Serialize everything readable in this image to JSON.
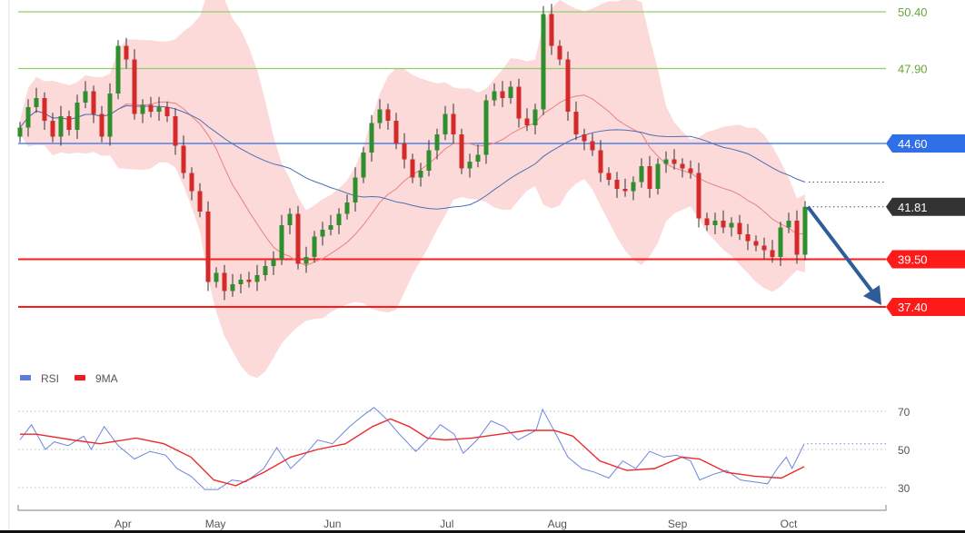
{
  "chart_data": [
    {
      "type": "candlestick",
      "ylim": [
        35.5,
        50.9
      ],
      "grid": false,
      "closes": [
        45.3,
        46.2,
        46.6,
        45.6,
        44.9,
        45.8,
        45.2,
        46.4,
        46.9,
        45.9,
        44.9,
        46.8,
        48.9,
        48.3,
        45.9,
        46.3,
        46.0,
        46.2,
        45.8,
        44.5,
        43.3,
        42.5,
        41.6,
        38.5,
        38.9,
        38.1,
        38.4,
        38.6,
        38.5,
        38.8,
        39.2,
        39.5,
        41.0,
        41.5,
        39.3,
        39.6,
        40.5,
        40.8,
        41.0,
        41.5,
        42.0,
        43.1,
        44.2,
        45.5,
        46.1,
        45.6,
        44.6,
        43.9,
        43.1,
        43.4,
        44.3,
        45.0,
        45.9,
        45.0,
        43.5,
        43.8,
        44.1,
        46.5,
        46.9,
        46.6,
        47.1,
        45.7,
        45.4,
        46.1,
        50.3,
        48.9,
        48.3,
        46.0,
        45.0,
        44.7,
        44.3,
        43.3,
        43.0,
        42.6,
        42.5,
        42.9,
        43.6,
        42.6,
        43.7,
        43.9,
        43.7,
        43.5,
        43.3,
        41.3,
        41.0,
        41.2,
        40.9,
        41.1,
        40.6,
        40.3,
        40.1,
        39.9,
        39.6,
        40.9,
        41.2,
        39.7,
        41.81
      ],
      "overlays": [
        "Bollinger bands",
        "moving average (red)",
        "moving average (blue)"
      ],
      "levels": [
        {
          "value": "50.40",
          "kind": "resistance",
          "color": "#8fcf6a"
        },
        {
          "value": "47.90",
          "kind": "resistance",
          "color": "#8fcf6a"
        },
        {
          "value": "44.60",
          "kind": "pivot",
          "color": "#2f6fe8"
        },
        {
          "value": "41.81",
          "kind": "last",
          "color": "#333333"
        },
        {
          "value": "39.50",
          "kind": "support",
          "color": "#ff1a1a"
        },
        {
          "value": "37.40",
          "kind": "support",
          "color": "#ff1a1a"
        }
      ],
      "arrow": {
        "from": 41.81,
        "to": 37.4,
        "direction": "down",
        "color": "#2e5d9a"
      },
      "x_ticks": [
        {
          "label": "Apr",
          "index": 12.6
        },
        {
          "label": "May",
          "index": 23.9
        },
        {
          "label": "Jun",
          "index": 38.2
        },
        {
          "label": "Jul",
          "index": 52.2
        },
        {
          "label": "Aug",
          "index": 65.7
        },
        {
          "label": "Sep",
          "index": 80.4
        },
        {
          "label": "Oct",
          "index": 94
        }
      ],
      "colors": {
        "up": "#2f8f2f",
        "down": "#d42a2a",
        "band": "#fbd3d3",
        "ma_short": "#e88080",
        "ma_long": "#4a6fb5"
      }
    },
    {
      "type": "line",
      "legend": [
        {
          "name": "RSI",
          "color": "#5b7fe0"
        },
        {
          "name": "9MA",
          "color": "#ee1c1c"
        }
      ],
      "legend_position": "top-left",
      "ylim": [
        20,
        80
      ],
      "y_ticks": [
        "70",
        "50",
        "30"
      ],
      "last_rsi": 53,
      "series": [
        {
          "name": "RSI",
          "points": [
            [
              0,
              55
            ],
            [
              1.4,
              63
            ],
            [
              3.1,
              50
            ],
            [
              4.2,
              54
            ],
            [
              5.9,
              52
            ],
            [
              7.8,
              57
            ],
            [
              8.7,
              50
            ],
            [
              10.3,
              62
            ],
            [
              12,
              52
            ],
            [
              14,
              45
            ],
            [
              15.9,
              49
            ],
            [
              17.8,
              47
            ],
            [
              19.2,
              40
            ],
            [
              20.9,
              36
            ],
            [
              22.6,
              29
            ],
            [
              24.2,
              29
            ],
            [
              25.9,
              34
            ],
            [
              27.6,
              33
            ],
            [
              29.8,
              40
            ],
            [
              31.4,
              51
            ],
            [
              33.1,
              40
            ],
            [
              34.8,
              47
            ],
            [
              36.4,
              55
            ],
            [
              38.2,
              53
            ],
            [
              40.3,
              62
            ],
            [
              42,
              68
            ],
            [
              43.3,
              72
            ],
            [
              44.8,
              66
            ],
            [
              46.4,
              58
            ],
            [
              48.4,
              49
            ],
            [
              49.8,
              55
            ],
            [
              51.4,
              63
            ],
            [
              53.1,
              58
            ],
            [
              54.2,
              48
            ],
            [
              55.9,
              55
            ],
            [
              57.6,
              65
            ],
            [
              59.2,
              62
            ],
            [
              60.9,
              55
            ],
            [
              63.1,
              60
            ],
            [
              63.9,
              71
            ],
            [
              65.3,
              60
            ],
            [
              67,
              46
            ],
            [
              68.7,
              40
            ],
            [
              70.3,
              38
            ],
            [
              72,
              35
            ],
            [
              73.7,
              44
            ],
            [
              75.3,
              40
            ],
            [
              77,
              49
            ],
            [
              78.7,
              46
            ],
            [
              80.3,
              47
            ],
            [
              82,
              44
            ],
            [
              83.1,
              34
            ],
            [
              84.8,
              37
            ],
            [
              86.4,
              39
            ],
            [
              88.1,
              34
            ],
            [
              89.8,
              33
            ],
            [
              91.4,
              32
            ],
            [
              92.6,
              40
            ],
            [
              93.7,
              46
            ],
            [
              94.4,
              40
            ],
            [
              95.9,
              53
            ]
          ]
        },
        {
          "name": "9MA",
          "points": [
            [
              0,
              58
            ],
            [
              2,
              58
            ],
            [
              6.4,
              55
            ],
            [
              9.8,
              53
            ],
            [
              14.2,
              56
            ],
            [
              17.6,
              53
            ],
            [
              20.9,
              46
            ],
            [
              23.7,
              34
            ],
            [
              26.4,
              31
            ],
            [
              29.8,
              38
            ],
            [
              33.1,
              46
            ],
            [
              36.4,
              50
            ],
            [
              39.8,
              53
            ],
            [
              43.1,
              62
            ],
            [
              45.3,
              66
            ],
            [
              47.6,
              62
            ],
            [
              49.8,
              56
            ],
            [
              52,
              55
            ],
            [
              55.3,
              56
            ],
            [
              58.7,
              58
            ],
            [
              62,
              60
            ],
            [
              65.3,
              60
            ],
            [
              67.6,
              57
            ],
            [
              70.9,
              44
            ],
            [
              74.2,
              39
            ],
            [
              77.6,
              40
            ],
            [
              80.9,
              46
            ],
            [
              83.1,
              45
            ],
            [
              86.4,
              38
            ],
            [
              89.8,
              36
            ],
            [
              93.1,
              35
            ],
            [
              95.9,
              41
            ]
          ]
        }
      ]
    }
  ]
}
